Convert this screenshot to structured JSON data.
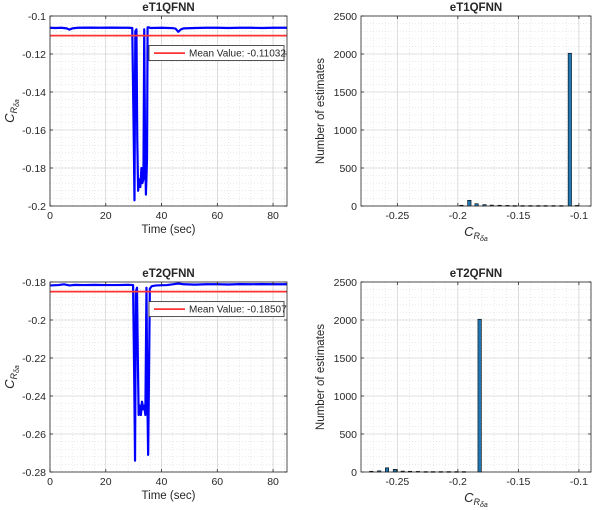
{
  "chart_data": [
    {
      "id": "p1",
      "type": "line",
      "title": "eT1QFNN",
      "xlabel": "Time (sec)",
      "ylabel_main": "C",
      "ylabel_sub": "R",
      "ylabel_subsub": "δa",
      "xlim": [
        0,
        85
      ],
      "ylim": [
        -0.2,
        -0.1
      ],
      "xticks": [
        0,
        20,
        40,
        60,
        80
      ],
      "xtick_labels": [
        "0",
        "20",
        "40",
        "60",
        "80"
      ],
      "yticks": [
        -0.2,
        -0.18,
        -0.16,
        -0.14,
        -0.12,
        -0.1
      ],
      "ytick_labels": [
        "-0.2",
        "-0.18",
        "-0.16",
        "-0.14",
        "-0.12",
        "-0.1"
      ],
      "grid": true,
      "series": [
        {
          "kind": "line",
          "color": "#0000ff",
          "points": [
            [
              0,
              -0.1062
            ],
            [
              2,
              -0.1063
            ],
            [
              4,
              -0.1062
            ],
            [
              6,
              -0.1065
            ],
            [
              7,
              -0.1072
            ],
            [
              8,
              -0.1065
            ],
            [
              10,
              -0.1062
            ],
            [
              14,
              -0.1061
            ],
            [
              18,
              -0.1062
            ],
            [
              22,
              -0.1061
            ],
            [
              26,
              -0.1062
            ],
            [
              28,
              -0.1062
            ],
            [
              29.5,
              -0.1063
            ],
            [
              30,
              -0.16
            ],
            [
              30.3,
              -0.197
            ],
            [
              30.6,
              -0.108
            ],
            [
              31,
              -0.107
            ],
            [
              31.3,
              -0.165
            ],
            [
              31.6,
              -0.192
            ],
            [
              32,
              -0.186
            ],
            [
              32.4,
              -0.19
            ],
            [
              32.8,
              -0.18
            ],
            [
              33.1,
              -0.188
            ],
            [
              33.5,
              -0.186
            ],
            [
              33.8,
              -0.107
            ],
            [
              34.1,
              -0.17
            ],
            [
              34.4,
              -0.194
            ],
            [
              34.8,
              -0.175
            ],
            [
              35,
              -0.106
            ],
            [
              35.5,
              -0.106
            ],
            [
              36,
              -0.1063
            ],
            [
              40,
              -0.1062
            ],
            [
              44,
              -0.1064
            ],
            [
              45,
              -0.1066
            ],
            [
              46,
              -0.1083
            ],
            [
              47,
              -0.107
            ],
            [
              48,
              -0.1065
            ],
            [
              52,
              -0.1063
            ],
            [
              56,
              -0.1062
            ],
            [
              60,
              -0.1062
            ],
            [
              64,
              -0.1063
            ],
            [
              68,
              -0.1062
            ],
            [
              72,
              -0.1062
            ],
            [
              76,
              -0.1063
            ],
            [
              80,
              -0.1062
            ],
            [
              85,
              -0.1062
            ]
          ]
        },
        {
          "kind": "hline",
          "name": "Mean Value: -0.11032",
          "color": "#ff3333",
          "y": -0.11032
        }
      ],
      "legend": {
        "label": "Mean Value: -0.11032",
        "location": "upper right, below mean line"
      }
    },
    {
      "id": "p2",
      "type": "bar",
      "title": "eT1QFNN",
      "ylabel": "Number of estimates",
      "xlabel_main": "C",
      "xlabel_sub": "R",
      "xlabel_subsub": "δa",
      "xlim": [
        -0.28,
        -0.09
      ],
      "ylim": [
        0,
        2500
      ],
      "xticks": [
        -0.25,
        -0.2,
        -0.15,
        -0.1
      ],
      "xtick_labels": [
        "-0.25",
        "-0.2",
        "-0.15",
        "-0.1"
      ],
      "yticks": [
        0,
        500,
        1000,
        1500,
        2000,
        2500
      ],
      "ytick_labels": [
        "0",
        "500",
        "1000",
        "1500",
        "2000",
        "2500"
      ],
      "grid": true,
      "bar_width": 0.0028,
      "bar_color": "#1f77b4",
      "bars": [
        [
          -0.197,
          10
        ],
        [
          -0.1905,
          75
        ],
        [
          -0.1845,
          30
        ],
        [
          -0.178,
          18
        ],
        [
          -0.172,
          12
        ],
        [
          -0.1655,
          10
        ],
        [
          -0.159,
          8
        ],
        [
          -0.153,
          6
        ],
        [
          -0.1465,
          6
        ],
        [
          -0.14,
          6
        ],
        [
          -0.1335,
          6
        ],
        [
          -0.1275,
          6
        ],
        [
          -0.121,
          6
        ],
        [
          -0.1145,
          6
        ],
        [
          -0.1075,
          2010
        ],
        [
          -0.1015,
          8
        ]
      ]
    },
    {
      "id": "p3",
      "type": "line",
      "title": "eT2QFNN",
      "xlabel": "Time (sec)",
      "ylabel_main": "C",
      "ylabel_sub": "R",
      "ylabel_subsub": "δa",
      "xlim": [
        0,
        85
      ],
      "ylim": [
        -0.28,
        -0.18
      ],
      "xticks": [
        0,
        20,
        40,
        60,
        80
      ],
      "xtick_labels": [
        "0",
        "20",
        "40",
        "60",
        "80"
      ],
      "yticks": [
        -0.28,
        -0.26,
        -0.24,
        -0.22,
        -0.2,
        -0.18
      ],
      "ytick_labels": [
        "-0.28",
        "-0.26",
        "-0.24",
        "-0.22",
        "-0.2",
        "-0.18"
      ],
      "grid": true,
      "series": [
        {
          "kind": "line",
          "color": "#0000ff",
          "points": [
            [
              0,
              -0.1818
            ],
            [
              3,
              -0.1816
            ],
            [
              5,
              -0.1812
            ],
            [
              7,
              -0.1818
            ],
            [
              9,
              -0.1815
            ],
            [
              12,
              -0.1816
            ],
            [
              16,
              -0.1815
            ],
            [
              20,
              -0.1816
            ],
            [
              24,
              -0.1816
            ],
            [
              28,
              -0.1815
            ],
            [
              29.8,
              -0.1816
            ],
            [
              30.2,
              -0.23
            ],
            [
              30.5,
              -0.274
            ],
            [
              30.8,
              -0.185
            ],
            [
              31.2,
              -0.183
            ],
            [
              31.5,
              -0.22
            ],
            [
              31.8,
              -0.25
            ],
            [
              32.2,
              -0.245
            ],
            [
              32.6,
              -0.25
            ],
            [
              33,
              -0.243
            ],
            [
              33.4,
              -0.247
            ],
            [
              33.8,
              -0.245
            ],
            [
              34.2,
              -0.25
            ],
            [
              34.6,
              -0.183
            ],
            [
              34.9,
              -0.24
            ],
            [
              35.2,
              -0.271
            ],
            [
              35.5,
              -0.23
            ],
            [
              35.8,
              -0.1835
            ],
            [
              36.5,
              -0.1822
            ],
            [
              38,
              -0.1818
            ],
            [
              42,
              -0.1816
            ],
            [
              44,
              -0.1812
            ],
            [
              46,
              -0.1808
            ],
            [
              48,
              -0.1812
            ],
            [
              52,
              -0.1814
            ],
            [
              56,
              -0.1812
            ],
            [
              60,
              -0.1812
            ],
            [
              64,
              -0.1813
            ],
            [
              68,
              -0.1811
            ],
            [
              72,
              -0.1812
            ],
            [
              76,
              -0.1811
            ],
            [
              80,
              -0.1812
            ],
            [
              85,
              -0.1812
            ]
          ]
        },
        {
          "kind": "hline",
          "name": "Mean Value: -0.18507",
          "color": "#ff3333",
          "y": -0.18507
        }
      ],
      "legend": {
        "label": "Mean Value: -0.18507",
        "location": "upper right, below mean line"
      }
    },
    {
      "id": "p4",
      "type": "bar",
      "title": "eT2QFNN",
      "ylabel": "Number of estimates",
      "xlabel_main": "C",
      "xlabel_sub": "R",
      "xlabel_subsub": "δa",
      "xlim": [
        -0.28,
        -0.09
      ],
      "ylim": [
        0,
        2500
      ],
      "xticks": [
        -0.25,
        -0.2,
        -0.15,
        -0.1
      ],
      "xtick_labels": [
        "-0.25",
        "-0.2",
        "-0.15",
        "-0.1"
      ],
      "yticks": [
        0,
        500,
        1000,
        1500,
        2000,
        2500
      ],
      "ytick_labels": [
        "0",
        "500",
        "1000",
        "1500",
        "2000",
        "2500"
      ],
      "grid": true,
      "bar_width": 0.0028,
      "bar_color": "#1f77b4",
      "bars": [
        [
          -0.2715,
          10
        ],
        [
          -0.265,
          15
        ],
        [
          -0.2585,
          55
        ],
        [
          -0.252,
          35
        ],
        [
          -0.2455,
          12
        ],
        [
          -0.2395,
          10
        ],
        [
          -0.233,
          8
        ],
        [
          -0.2265,
          6
        ],
        [
          -0.2205,
          6
        ],
        [
          -0.214,
          6
        ],
        [
          -0.2075,
          6
        ],
        [
          -0.201,
          6
        ],
        [
          -0.195,
          6
        ],
        [
          -0.182,
          2010
        ]
      ]
    }
  ]
}
